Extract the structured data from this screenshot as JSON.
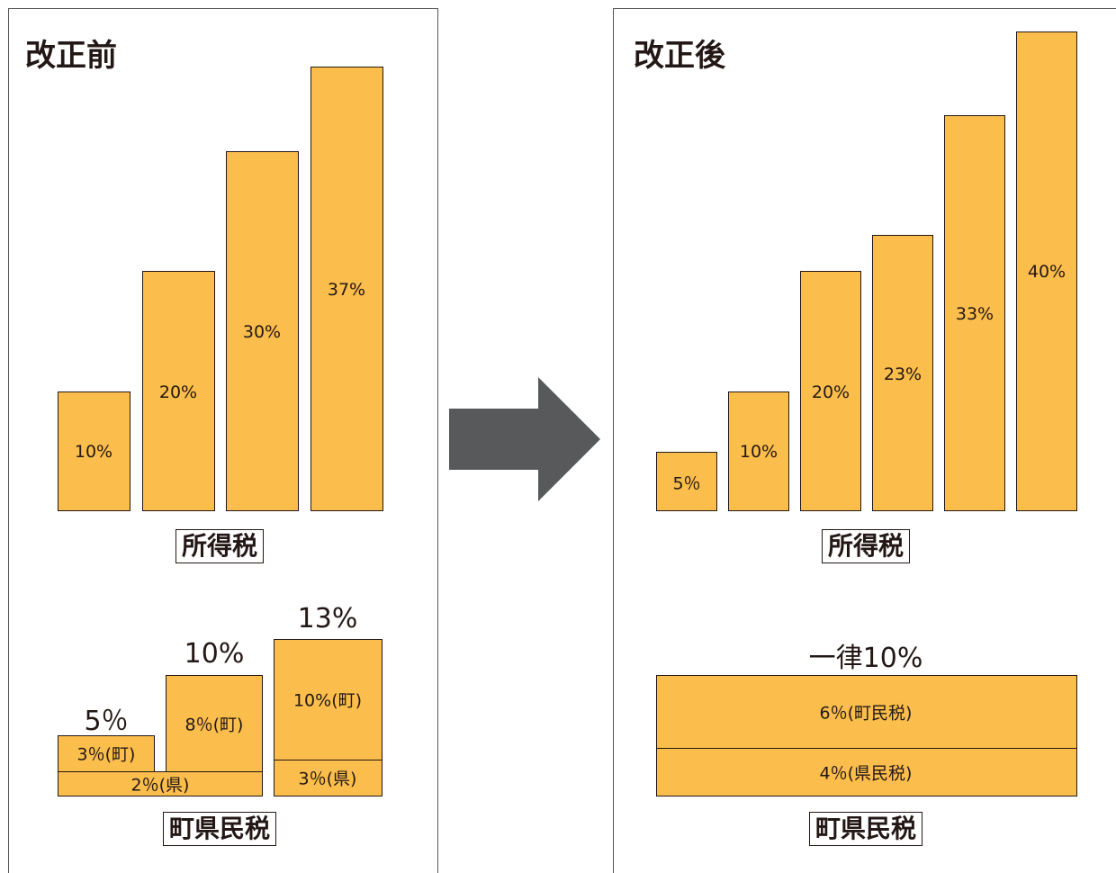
{
  "before": {
    "title": "改正前",
    "income_tax": {
      "label": "所得税",
      "bars": [
        "10%",
        "20%",
        "30%",
        "37%"
      ]
    },
    "resident_tax": {
      "label": "町県民税",
      "groups": [
        {
          "total": "5％",
          "town": "3％(町)",
          "pref": "2％(県)"
        },
        {
          "total": "10%",
          "town": "8％(町)"
        },
        {
          "total": "13%",
          "town": "10%(町)",
          "pref": "3％(県)"
        }
      ]
    }
  },
  "after": {
    "title": "改正後",
    "income_tax": {
      "label": "所得税",
      "bars": [
        "5％",
        "10%",
        "20%",
        "23%",
        "33%",
        "40%"
      ]
    },
    "resident_tax": {
      "label": "町県民税",
      "total": "一律10%",
      "town": "6％(町民税)",
      "pref": "4％(県民税)"
    }
  },
  "colors": {
    "bar": "#fbbd4b",
    "arrow": "#58595b",
    "border": "#231815"
  },
  "arrow": {
    "icon": "right-arrow-icon"
  }
}
